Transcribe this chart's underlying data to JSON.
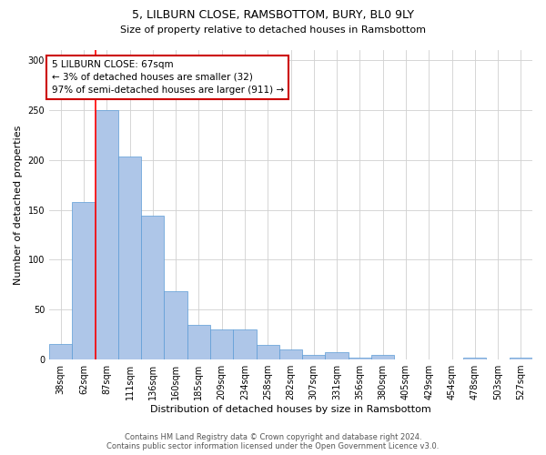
{
  "title1": "5, LILBURN CLOSE, RAMSBOTTOM, BURY, BL0 9LY",
  "title2": "Size of property relative to detached houses in Ramsbottom",
  "xlabel": "Distribution of detached houses by size in Ramsbottom",
  "ylabel": "Number of detached properties",
  "categories": [
    "38sqm",
    "62sqm",
    "87sqm",
    "111sqm",
    "136sqm",
    "160sqm",
    "185sqm",
    "209sqm",
    "234sqm",
    "258sqm",
    "282sqm",
    "307sqm",
    "331sqm",
    "356sqm",
    "380sqm",
    "405sqm",
    "429sqm",
    "454sqm",
    "478sqm",
    "503sqm",
    "527sqm"
  ],
  "values": [
    16,
    158,
    250,
    203,
    144,
    68,
    35,
    30,
    30,
    15,
    10,
    5,
    7,
    2,
    5,
    0,
    0,
    0,
    2,
    0,
    2
  ],
  "bar_color": "#aec6e8",
  "bar_edge_color": "#5b9bd5",
  "red_line_x": 1.5,
  "annotation_text": "5 LILBURN CLOSE: 67sqm\n← 3% of detached houses are smaller (32)\n97% of semi-detached houses are larger (911) →",
  "annotation_box_color": "#ffffff",
  "annotation_box_edge_color": "#cc0000",
  "ylim": [
    0,
    310
  ],
  "yticks": [
    0,
    50,
    100,
    150,
    200,
    250,
    300
  ],
  "footer_line1": "Contains HM Land Registry data © Crown copyright and database right 2024.",
  "footer_line2": "Contains public sector information licensed under the Open Government Licence v3.0.",
  "bg_color": "#ffffff",
  "grid_color": "#d0d0d0",
  "title1_fontsize": 9,
  "title2_fontsize": 8,
  "ylabel_fontsize": 8,
  "xlabel_fontsize": 8,
  "annotation_fontsize": 7.5,
  "tick_fontsize": 7,
  "footer_fontsize": 6
}
